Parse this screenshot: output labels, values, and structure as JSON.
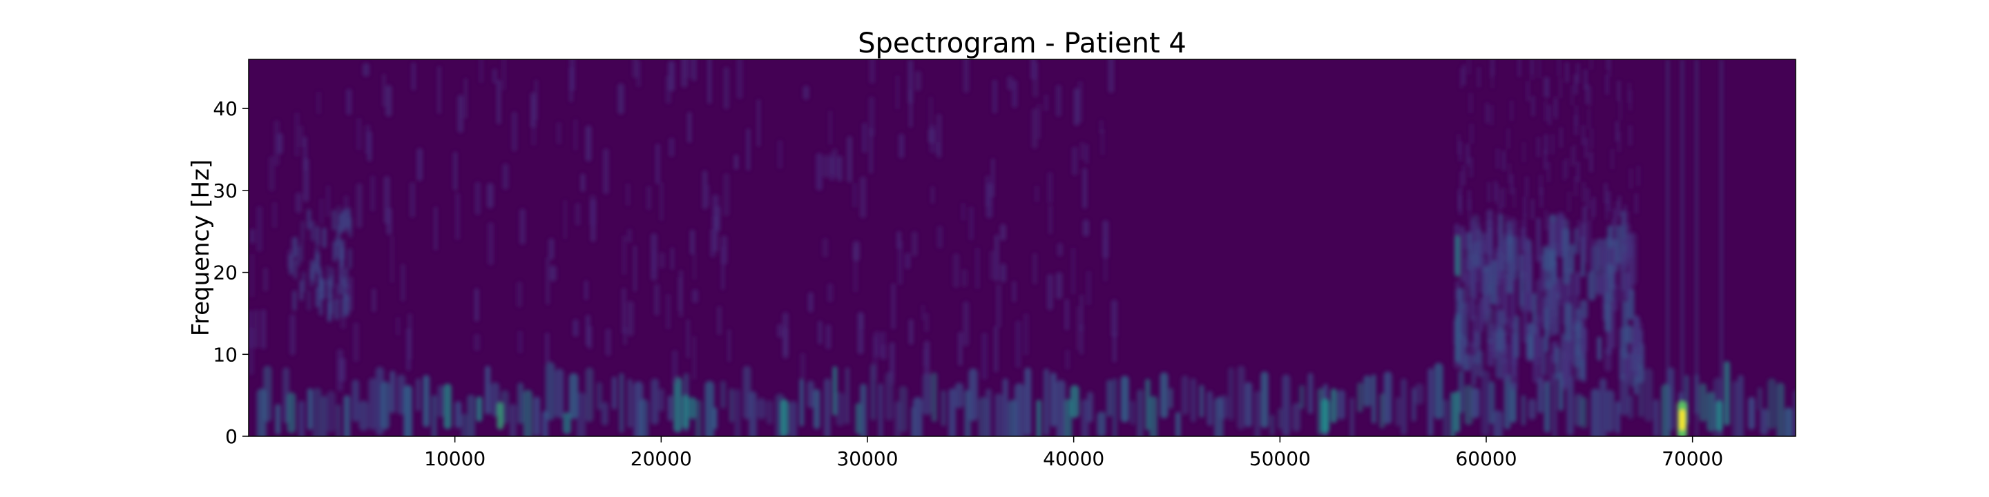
{
  "chart_data": {
    "type": "heatmap",
    "title": "Spectrogram - Patient 4",
    "xlabel": "",
    "ylabel": "Frequency [Hz]",
    "xlim": [
      0,
      75000
    ],
    "ylim": [
      0,
      46
    ],
    "x_ticks": [
      10000,
      20000,
      30000,
      40000,
      50000,
      60000,
      70000
    ],
    "x_tick_labels": [
      "10000",
      "20000",
      "30000",
      "40000",
      "50000",
      "60000",
      "70000"
    ],
    "y_ticks": [
      0,
      10,
      20,
      30,
      40
    ],
    "y_tick_labels": [
      "0",
      "10",
      "20",
      "30",
      "40"
    ],
    "colormap": "viridis",
    "colors": {
      "background": "#440154",
      "low_mid": "#3b528b",
      "mid": "#21918c",
      "high": "#5ec962",
      "peak": "#fde725"
    },
    "grid": false,
    "legend": "none",
    "low_frequency_band_hz": [
      0,
      7
    ],
    "broadband_segment_x": [
      58500,
      67500
    ],
    "broadband_segment_freq_hz": [
      8,
      25
    ],
    "peak_x": 69500,
    "peak_freq_hz": 2
  }
}
